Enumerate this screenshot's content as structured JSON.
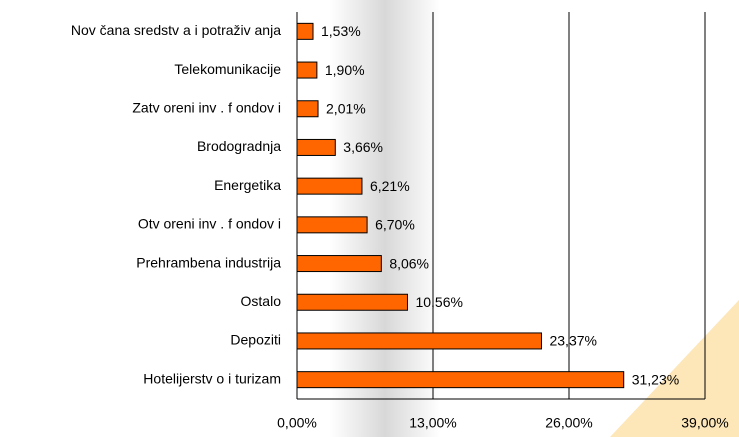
{
  "chart_data": {
    "type": "barh",
    "categories": [
      "Nov čana sredstv a i potraživ anja",
      "Telekomunikacije",
      "Zatv oreni inv . f ondov i",
      "Brodogradnja",
      "Energetika",
      "Otv oreni inv . f ondov i",
      "Prehrambena industrija",
      "Ostalo",
      "Depoziti",
      "Hotelijerstv o i turizam"
    ],
    "values": [
      1.53,
      1.9,
      2.01,
      3.66,
      6.21,
      6.7,
      8.06,
      10.56,
      23.37,
      31.23
    ],
    "value_labels": [
      "1,53%",
      "1,90%",
      "2,01%",
      "3,66%",
      "6,21%",
      "6,70%",
      "8,06%",
      "10,56%",
      "23,37%",
      "31,23%"
    ],
    "color": "#ff6600",
    "xlim": [
      0,
      39
    ],
    "xticks": [
      {
        "value": 0,
        "label": "0,00%"
      },
      {
        "value": 13,
        "label": "13,00%"
      },
      {
        "value": 26,
        "label": "26,00%"
      },
      {
        "value": 39,
        "label": "39,00%"
      }
    ],
    "grid": true
  }
}
